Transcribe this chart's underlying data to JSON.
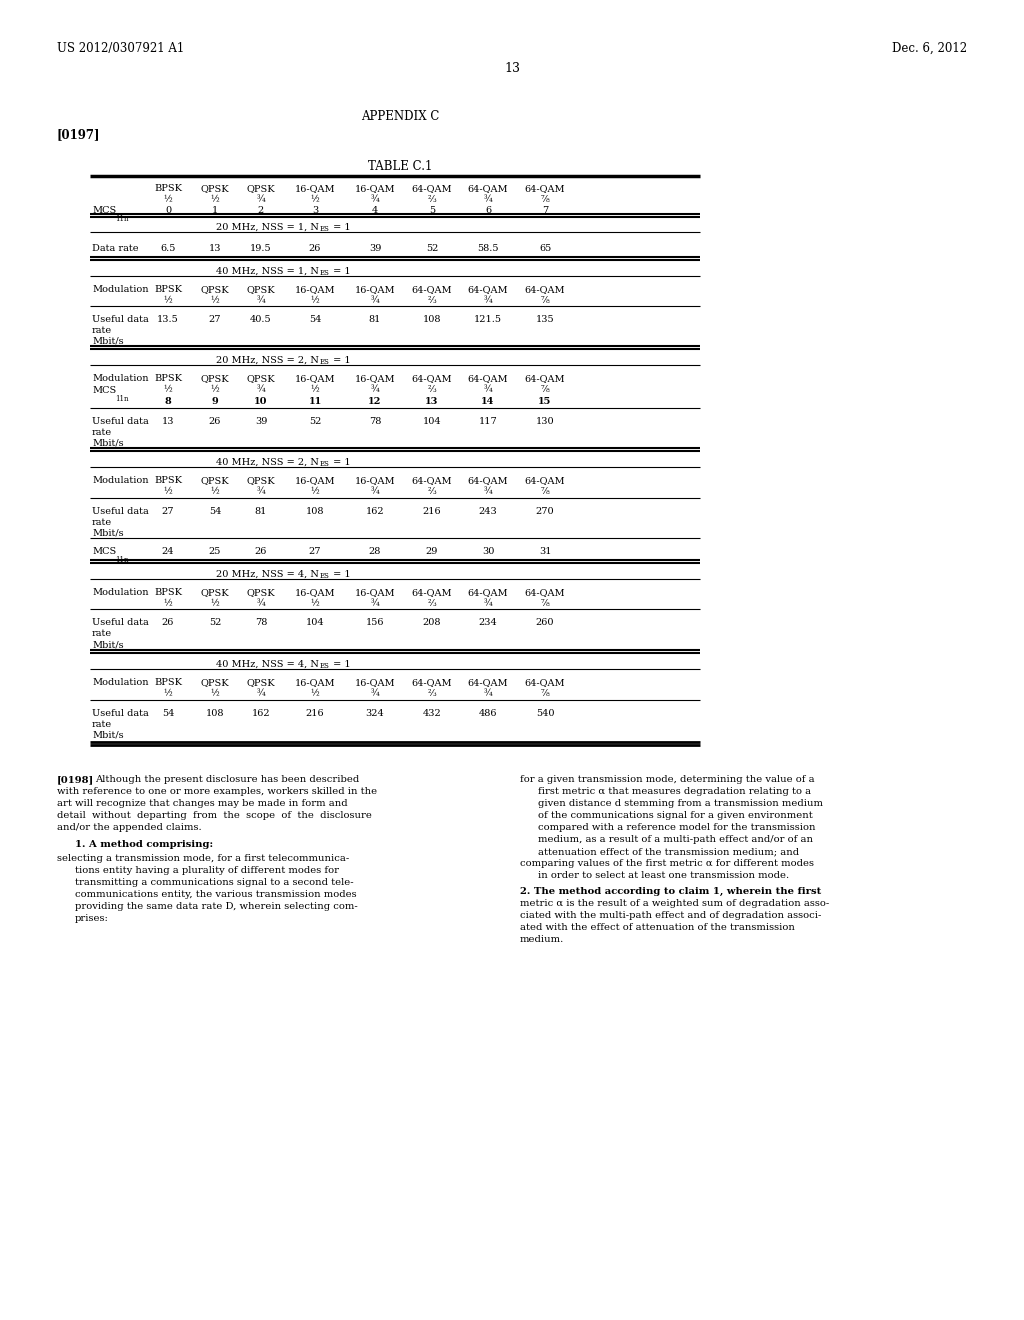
{
  "patent_number": "US 2012/0307921 A1",
  "date": "Dec. 6, 2012",
  "page_number": "13",
  "appendix": "APPENDIX C",
  "paragraph_ref": "[0197]",
  "table_title": "TABLE C.1",
  "background_color": "#ffffff",
  "text_color": "#000000",
  "header_labels_line1": [
    "BPSK",
    "QPSK",
    "QPSK",
    "16-QAM",
    "16-QAM",
    "64-QAM",
    "64-QAM",
    "64-QAM"
  ],
  "header_labels_line2": [
    "½",
    "½",
    "¾",
    "½",
    "¾",
    "⅔",
    "¾",
    "⅞"
  ],
  "header_labels_line3": [
    "0",
    "1",
    "2",
    "3",
    "4",
    "5",
    "6",
    "7"
  ],
  "data_rate_vals": [
    "6.5",
    "13",
    "19.5",
    "26",
    "39",
    "52",
    "58.5",
    "65"
  ],
  "s2_vals": [
    "13.5",
    "27",
    "40.5",
    "54",
    "81",
    "108",
    "121.5",
    "135"
  ],
  "s3_mcs": [
    "8",
    "9",
    "10",
    "11",
    "12",
    "13",
    "14",
    "15"
  ],
  "s3_vals": [
    "13",
    "26",
    "39",
    "52",
    "78",
    "104",
    "117",
    "130"
  ],
  "s4_vals": [
    "27",
    "54",
    "81",
    "108",
    "162",
    "216",
    "243",
    "270"
  ],
  "s4_mcs": [
    "24",
    "25",
    "26",
    "27",
    "28",
    "29",
    "30",
    "31"
  ],
  "s5_vals": [
    "26",
    "52",
    "78",
    "104",
    "156",
    "208",
    "234",
    "260"
  ],
  "s6_vals": [
    "54",
    "108",
    "162",
    "216",
    "324",
    "432",
    "486",
    "540"
  ]
}
